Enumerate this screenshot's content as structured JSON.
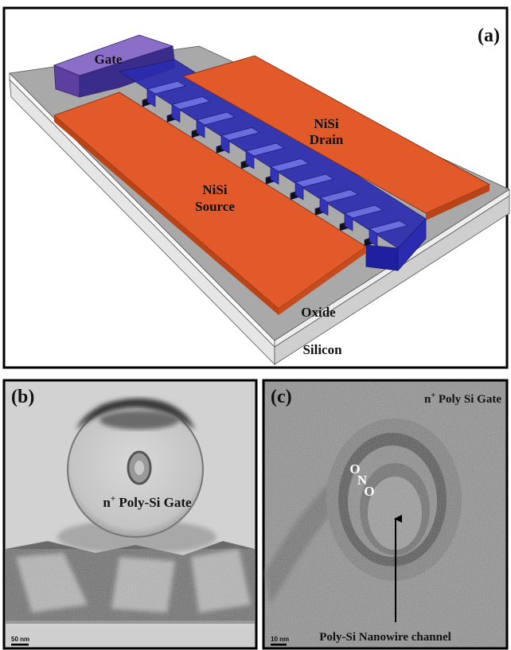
{
  "panel_a": {
    "label": "(a)",
    "gate": "Gate",
    "drain": [
      "NiSi",
      "Drain"
    ],
    "source": [
      "NiSi",
      "Source"
    ],
    "oxide": "Oxide",
    "silicon": "Silicon"
  },
  "panel_b": {
    "label": "(b)",
    "gate_label": {
      "prefix": "n",
      "sup": "+",
      "rest": " Poly-Si Gate"
    },
    "scale_bar": "50 nm"
  },
  "panel_c": {
    "label": "(c)",
    "gate_label": {
      "prefix": "n",
      "sup": "+",
      "rest": " Poly Si Gate"
    },
    "layers": [
      "O",
      "N",
      "O"
    ],
    "channel": "Poly-Si Nanowire channel",
    "scale_bar": "10 nm"
  }
}
